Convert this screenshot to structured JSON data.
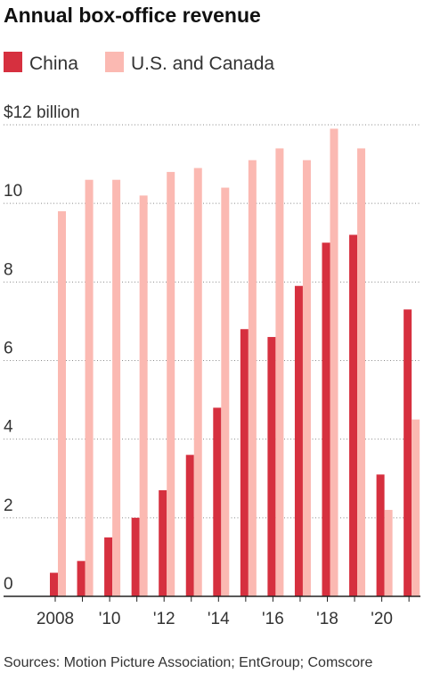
{
  "chart_data": {
    "type": "bar",
    "title": "Annual box-office revenue",
    "xlabel": "",
    "ylabel": "",
    "ylim": [
      0,
      12
    ],
    "y_ticks": [
      {
        "value": 0,
        "label": "0"
      },
      {
        "value": 2,
        "label": "2"
      },
      {
        "value": 4,
        "label": "4"
      },
      {
        "value": 6,
        "label": "6"
      },
      {
        "value": 8,
        "label": "8"
      },
      {
        "value": 10,
        "label": "10"
      },
      {
        "value": 12,
        "label": "$12 billion"
      }
    ],
    "categories": [
      "2008",
      "2009",
      "2010",
      "2011",
      "2012",
      "2013",
      "2014",
      "2015",
      "2016",
      "2017",
      "2018",
      "2019",
      "2020",
      "2021"
    ],
    "x_tick_labels": [
      "2008",
      "",
      "'10",
      "",
      "'12",
      "",
      "'14",
      "",
      "'16",
      "",
      "'18",
      "",
      "'20",
      ""
    ],
    "series": [
      {
        "name": "China",
        "color": "#d6303f",
        "values": [
          0.6,
          0.9,
          1.5,
          2.0,
          2.7,
          3.6,
          4.8,
          6.8,
          6.6,
          7.9,
          9.0,
          9.2,
          3.1,
          7.3
        ]
      },
      {
        "name": "U.S. and Canada",
        "color": "#fbb9b2",
        "values": [
          9.8,
          10.6,
          10.6,
          10.2,
          10.8,
          10.9,
          10.4,
          11.1,
          11.4,
          11.1,
          11.9,
          11.4,
          2.2,
          4.5
        ]
      }
    ],
    "legend_position": "top-left",
    "grid": "horizontal",
    "source": "Sources: Motion Picture Association; EntGroup; Comscore"
  }
}
